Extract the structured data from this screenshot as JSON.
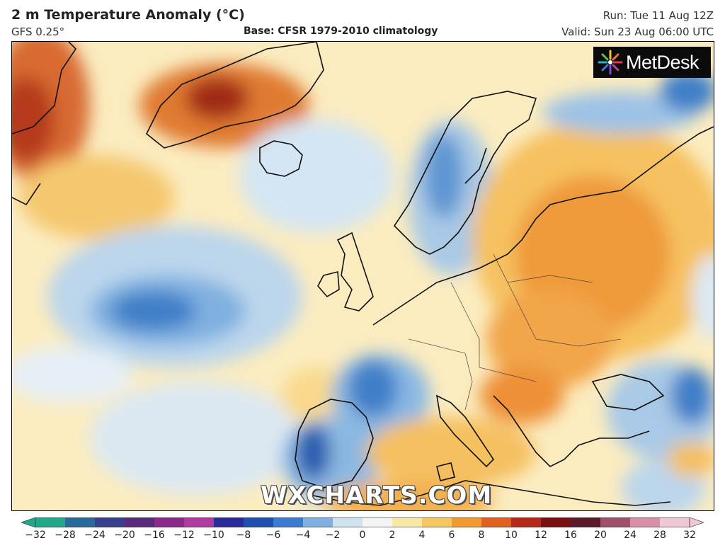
{
  "header": {
    "title": "2 m Temperature Anomaly (°C)",
    "model": "GFS 0.25°",
    "base": "Base: CFSR 1979-2010 climatology",
    "run": "Run: Tue 11 Aug 12Z",
    "valid": "Valid: Sun 23 Aug 06:00 UTC"
  },
  "logo": {
    "text": "MetDesk",
    "icon": "metdesk-star-icon"
  },
  "watermark": "WXCHARTS.COM",
  "colorbar": {
    "ticks": [
      "−32",
      "−28",
      "−24",
      "−20",
      "−16",
      "−12",
      "−10",
      "−8",
      "−6",
      "−4",
      "−2",
      "0",
      "2",
      "4",
      "6",
      "8",
      "10",
      "12",
      "16",
      "20",
      "24",
      "28",
      "32"
    ],
    "colors": [
      "#1fa88a",
      "#2a6a9a",
      "#3a3f8f",
      "#5a2a7a",
      "#8a2a8a",
      "#b03aa0",
      "#2a2a9a",
      "#1f4fb0",
      "#3a7ad0",
      "#7fb0e0",
      "#d0e4f0",
      "#f4f4f4",
      "#f8e8a8",
      "#f6c860",
      "#f09a30",
      "#e06020",
      "#b82818",
      "#7a1010",
      "#5a1a2a",
      "#a0506a",
      "#d890a8",
      "#f0c8d4"
    ]
  }
}
